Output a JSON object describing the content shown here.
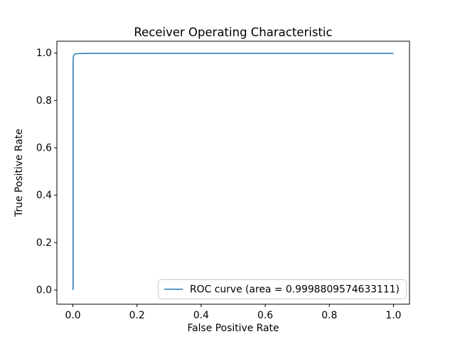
{
  "figure": {
    "background": "#ffffff",
    "spine_color": "#000000",
    "tick_color": "#000000",
    "legend_border_color": "#cccccc",
    "legend_background": "#ffffff"
  },
  "chart_data": {
    "type": "line",
    "title": "Receiver Operating Characteristic",
    "xlabel": "False Positive Rate",
    "ylabel": "True Positive Rate",
    "xlim": [
      -0.05,
      1.05
    ],
    "ylim": [
      -0.06,
      1.05
    ],
    "x_ticks": [
      0.0,
      0.2,
      0.4,
      0.6,
      0.8,
      1.0
    ],
    "y_ticks": [
      0.0,
      0.2,
      0.4,
      0.6,
      0.8,
      1.0
    ],
    "tick_label_format": "one_decimal",
    "grid": false,
    "legend": {
      "position": "lower right",
      "entries": [
        {
          "label": "ROC curve (area = 0.9998809574633111)",
          "color": "#1f77b4",
          "line_style": "solid"
        }
      ]
    },
    "series": [
      {
        "name": "ROC curve",
        "color": "#1f77b4",
        "auc": 0.9998809574633111,
        "points": [
          [
            0.0005,
            0.0
          ],
          [
            0.0005,
            0.95
          ],
          [
            0.001,
            0.975
          ],
          [
            0.0015,
            0.985
          ],
          [
            0.003,
            0.992
          ],
          [
            0.005,
            0.995
          ],
          [
            0.01,
            0.997
          ],
          [
            0.02,
            0.998
          ],
          [
            0.05,
            0.9985
          ],
          [
            1.0,
            0.9985
          ]
        ]
      }
    ]
  }
}
